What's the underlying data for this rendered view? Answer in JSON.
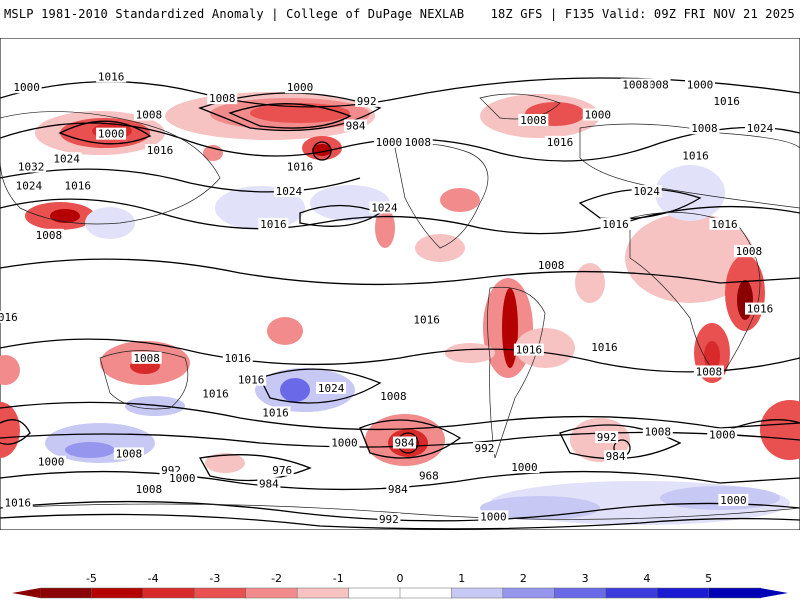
{
  "header": {
    "left": "MSLP 1981-2010 Standardized Anomaly | College of DuPage NEXLAB",
    "right": "18Z GFS | F135 Valid: 09Z FRI NOV 21 2025"
  },
  "colorbar": {
    "ticks": [
      "-5",
      "-4",
      "-3",
      "-2",
      "-1",
      "0",
      "1",
      "2",
      "3",
      "4",
      "5"
    ],
    "colors": [
      "#8b0000",
      "#b50000",
      "#d82a2a",
      "#e95050",
      "#f28b8b",
      "#f7c2c2",
      "#ffffff",
      "#ffffff",
      "#c8c8f5",
      "#9696ee",
      "#6a6ae8",
      "#3c3cdc",
      "#1a1ad2",
      "#0000b4"
    ]
  },
  "map": {
    "background": "#ffffff",
    "contour_labels": [
      {
        "text": "1016",
        "lon": -130,
        "lat": 76
      },
      {
        "text": "1000",
        "lon": -168,
        "lat": 72
      },
      {
        "text": "1000",
        "lon": -45,
        "lat": 72
      },
      {
        "text": "1008",
        "lon": -80,
        "lat": 68
      },
      {
        "text": "992",
        "lon": -15,
        "lat": 67
      },
      {
        "text": "1008",
        "lon": 115,
        "lat": 73
      },
      {
        "text": "1000",
        "lon": 135,
        "lat": 73
      },
      {
        "text": "1008",
        "lon": -113,
        "lat": 62
      },
      {
        "text": "984",
        "lon": -20,
        "lat": 58
      },
      {
        "text": "1000",
        "lon": -130,
        "lat": 55
      },
      {
        "text": "1000",
        "lon": -5,
        "lat": 52
      },
      {
        "text": "1008",
        "lon": 8,
        "lat": 52
      },
      {
        "text": "1016",
        "lon": -108,
        "lat": 49
      },
      {
        "text": "1024",
        "lon": -150,
        "lat": 46
      },
      {
        "text": "1016",
        "lon": -45,
        "lat": 43
      },
      {
        "text": "1016",
        "lon": 72,
        "lat": 52
      },
      {
        "text": "1008",
        "lon": 60,
        "lat": 60
      },
      {
        "text": "1000",
        "lon": 89,
        "lat": 62
      },
      {
        "text": "1008",
        "lon": 106,
        "lat": 73
      },
      {
        "text": "1008",
        "lon": 137,
        "lat": 57
      },
      {
        "text": "1016",
        "lon": 147,
        "lat": 67
      },
      {
        "text": "1024",
        "lon": 162,
        "lat": 57
      },
      {
        "text": "1016",
        "lon": 133,
        "lat": 47
      },
      {
        "text": "1032",
        "lon": -166,
        "lat": 43
      },
      {
        "text": "1024",
        "lon": -167,
        "lat": 36
      },
      {
        "text": "1016",
        "lon": -145,
        "lat": 36
      },
      {
        "text": "1024",
        "lon": -50,
        "lat": 34
      },
      {
        "text": "1024",
        "lon": -7,
        "lat": 28
      },
      {
        "text": "1016",
        "lon": -57,
        "lat": 22
      },
      {
        "text": "1016",
        "lon": 97,
        "lat": 22
      },
      {
        "text": "1024",
        "lon": 111,
        "lat": 34
      },
      {
        "text": "1016",
        "lon": 146,
        "lat": 22
      },
      {
        "text": "1008",
        "lon": -158,
        "lat": 18
      },
      {
        "text": "1008",
        "lon": 68,
        "lat": 7
      },
      {
        "text": "1008",
        "lon": 157,
        "lat": 12
      },
      {
        "text": "1016",
        "lon": -178,
        "lat": -12
      },
      {
        "text": "1008",
        "lon": -114,
        "lat": -27
      },
      {
        "text": "1016",
        "lon": 12,
        "lat": -13
      },
      {
        "text": "1016",
        "lon": -73,
        "lat": -27
      },
      {
        "text": "1016",
        "lon": 58,
        "lat": -24
      },
      {
        "text": "1016",
        "lon": 92,
        "lat": -23
      },
      {
        "text": "1016",
        "lon": 162,
        "lat": -9
      },
      {
        "text": "1008",
        "lon": 139,
        "lat": -32
      },
      {
        "text": "1016",
        "lon": -83,
        "lat": -40
      },
      {
        "text": "1016",
        "lon": -67,
        "lat": -35
      },
      {
        "text": "1024",
        "lon": -31,
        "lat": -38
      },
      {
        "text": "1008",
        "lon": -3,
        "lat": -41
      },
      {
        "text": "1016",
        "lon": -56,
        "lat": -47
      },
      {
        "text": "1008",
        "lon": 116,
        "lat": -54
      },
      {
        "text": "1000",
        "lon": 145,
        "lat": -55
      },
      {
        "text": "992",
        "lon": 93,
        "lat": -56
      },
      {
        "text": "984",
        "lon": 97,
        "lat": -63
      },
      {
        "text": "984",
        "lon": 2,
        "lat": -58
      },
      {
        "text": "992",
        "lon": 38,
        "lat": -60
      },
      {
        "text": "1000",
        "lon": -25,
        "lat": -58
      },
      {
        "text": "1008",
        "lon": -122,
        "lat": -62
      },
      {
        "text": "1000",
        "lon": -157,
        "lat": -65
      },
      {
        "text": "992",
        "lon": -103,
        "lat": -68
      },
      {
        "text": "1000",
        "lon": -98,
        "lat": -71
      },
      {
        "text": "1008",
        "lon": -113,
        "lat": -75
      },
      {
        "text": "976",
        "lon": -53,
        "lat": -68
      },
      {
        "text": "984",
        "lon": -59,
        "lat": -73
      },
      {
        "text": "968",
        "lon": 13,
        "lat": -70
      },
      {
        "text": "984",
        "lon": -1,
        "lat": -75
      },
      {
        "text": "1000",
        "lon": 56,
        "lat": -67
      },
      {
        "text": "992",
        "lon": -5,
        "lat": -86
      },
      {
        "text": "1000",
        "lon": 42,
        "lat": -85
      },
      {
        "text": "1000",
        "lon": 150,
        "lat": -79
      },
      {
        "text": "1016",
        "lon": -172,
        "lat": -80
      }
    ]
  }
}
